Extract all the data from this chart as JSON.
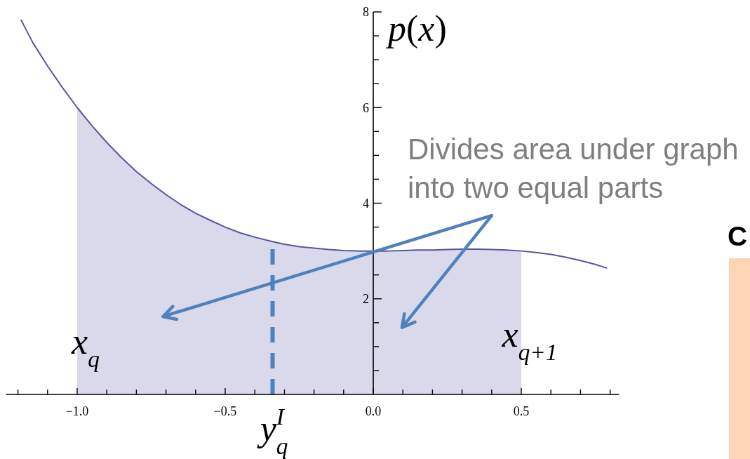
{
  "chart_data": {
    "type": "line",
    "ylabel": "p(x)",
    "xlim": [
      -1.24,
      0.83
    ],
    "ylim": [
      0,
      8
    ],
    "xticks": [
      {
        "value": -1.2,
        "label": null
      },
      {
        "value": -1.1,
        "label": null
      },
      {
        "value": -1.0,
        "label": "−1.0"
      },
      {
        "value": -0.9,
        "label": null
      },
      {
        "value": -0.8,
        "label": null
      },
      {
        "value": -0.7,
        "label": null
      },
      {
        "value": -0.6,
        "label": null
      },
      {
        "value": -0.5,
        "label": "−0.5"
      },
      {
        "value": -0.4,
        "label": null
      },
      {
        "value": -0.3,
        "label": null
      },
      {
        "value": -0.2,
        "label": null
      },
      {
        "value": -0.1,
        "label": null
      },
      {
        "value": 0,
        "label": "0.0"
      },
      {
        "value": 0.1,
        "label": null
      },
      {
        "value": 0.2,
        "label": null
      },
      {
        "value": 0.3,
        "label": null
      },
      {
        "value": 0.4,
        "label": null
      },
      {
        "value": 0.5,
        "label": "0.5"
      },
      {
        "value": 0.6,
        "label": null
      },
      {
        "value": 0.7,
        "label": null
      },
      {
        "value": 0.8,
        "label": null
      }
    ],
    "yticks": [
      {
        "value": 0.5,
        "label": null
      },
      {
        "value": 1,
        "label": null
      },
      {
        "value": 1.5,
        "label": null
      },
      2,
      {
        "value": 2.5,
        "label": null
      },
      {
        "value": 3,
        "label": null
      },
      {
        "value": 3.5,
        "label": null
      },
      4,
      {
        "value": 4.5,
        "label": null
      },
      {
        "value": 5,
        "label": null
      },
      {
        "value": 5.5,
        "label": null
      },
      6,
      {
        "value": 6.5,
        "label": null
      },
      {
        "value": 7,
        "label": null
      },
      {
        "value": 7.5,
        "label": null
      },
      8
    ],
    "series": [
      {
        "type": "area",
        "color": "#d9d9eb",
        "x": [
          -1.0,
          -0.95,
          -0.9,
          -0.85,
          -0.8,
          -0.75,
          -0.7,
          -0.65,
          -0.6,
          -0.55,
          -0.5,
          -0.45,
          -0.4,
          -0.35,
          -0.3,
          -0.25,
          -0.2,
          -0.15,
          -0.1,
          -0.05,
          0,
          0.05,
          0.1,
          0.15,
          0.2,
          0.25,
          0.3,
          0.35,
          0.4,
          0.45,
          0.5
        ],
        "values": [
          6.0,
          5.62,
          5.27,
          4.95,
          4.66,
          4.41,
          4.18,
          3.97,
          3.79,
          3.64,
          3.5,
          3.38,
          3.29,
          3.21,
          3.14,
          3.09,
          3.06,
          3.03,
          3.01,
          3.0,
          3.0,
          3.0,
          3.01,
          3.02,
          3.02,
          3.03,
          3.04,
          3.04,
          3.03,
          3.02,
          3.0
        ]
      },
      {
        "type": "line",
        "color": "#5656a5",
        "x": [
          -1.19,
          -1.15,
          -1.1,
          -1.05,
          -1.0,
          -0.95,
          -0.9,
          -0.85,
          -0.8,
          -0.75,
          -0.7,
          -0.65,
          -0.6,
          -0.55,
          -0.5,
          -0.45,
          -0.4,
          -0.35,
          -0.3,
          -0.25,
          -0.2,
          -0.15,
          -0.1,
          -0.05,
          0,
          0.05,
          0.1,
          0.15,
          0.2,
          0.25,
          0.3,
          0.35,
          0.4,
          0.45,
          0.5,
          0.55,
          0.6,
          0.65,
          0.7,
          0.75,
          0.79
        ],
        "values": [
          7.84,
          7.36,
          6.87,
          6.42,
          6.0,
          5.62,
          5.27,
          4.95,
          4.66,
          4.41,
          4.18,
          3.97,
          3.79,
          3.64,
          3.5,
          3.38,
          3.29,
          3.21,
          3.14,
          3.09,
          3.06,
          3.03,
          3.01,
          3.0,
          3.0,
          3.0,
          3.01,
          3.02,
          3.02,
          3.03,
          3.04,
          3.04,
          3.03,
          3.02,
          3.0,
          2.97,
          2.93,
          2.87,
          2.8,
          2.72,
          2.64
        ]
      },
      {
        "type": "line",
        "color": "#4f81bd",
        "line_style": "dashed",
        "x": [
          -0.34,
          -0.34
        ],
        "values": [
          0,
          3.2
        ]
      }
    ],
    "annotations": [
      {
        "text": "x$_{q}$",
        "x": -1.0,
        "y": 0.85
      },
      {
        "text": "x$_{q+1}$",
        "x": 0.5,
        "y": 1.0
      },
      "y$_{q}$$^{I}$",
      "Divides area under graph into two equal parts",
      "C"
    ]
  }
}
